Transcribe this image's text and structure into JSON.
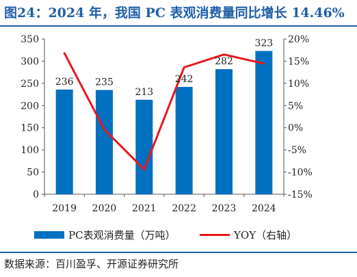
{
  "figure": {
    "title": "图24：2024 年，我国 PC 表观消费量同比增长 14.46%",
    "source": "数据来源：百川盈孚、开源证券研究所"
  },
  "colors": {
    "bar": "#0070c0",
    "line": "#e8161e",
    "title": "#1f5fa8"
  },
  "chart_data": {
    "type": "bar",
    "categories": [
      "2019",
      "2020",
      "2021",
      "2022",
      "2023",
      "2024"
    ],
    "series": [
      {
        "name": "PC表观消费量（万吨）",
        "type": "bar",
        "axis": "left",
        "values": [
          236,
          235,
          213,
          242,
          282,
          323
        ]
      },
      {
        "name": "YOY（右轴）",
        "type": "line",
        "axis": "right",
        "values": [
          16.8,
          -0.4,
          -9.4,
          13.6,
          16.5,
          14.46
        ]
      }
    ],
    "data_labels": [
      "236",
      "235",
      "213",
      "242",
      "282",
      "323"
    ],
    "y_left": {
      "min": 0,
      "max": 350,
      "step": 50,
      "ticks": [
        "0",
        "50",
        "100",
        "150",
        "200",
        "250",
        "300",
        "350"
      ]
    },
    "y_right": {
      "min": -15,
      "max": 20,
      "step": 5,
      "ticks": [
        "-15%",
        "-10%",
        "-5%",
        "0%",
        "5%",
        "10%",
        "15%",
        "20%"
      ]
    },
    "grid": false,
    "legend_position": "bottom"
  }
}
